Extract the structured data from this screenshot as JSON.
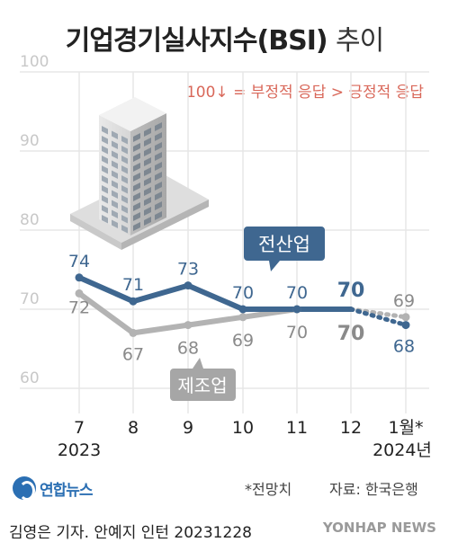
{
  "chart_data": {
    "type": "line",
    "title": "기업경기실사지수(BSI)",
    "title_suffix": "추이",
    "annotation": "100↓ = 부정적 응답 > 긍정적 응답",
    "ylim": [
      55,
      105
    ],
    "yticks": [
      60,
      70,
      80,
      90,
      100
    ],
    "categories": [
      "7",
      "8",
      "9",
      "10",
      "11",
      "12",
      "1월*"
    ],
    "year_labels": [
      {
        "index": 0,
        "text": "2023"
      },
      {
        "index": 6,
        "text": "2024년"
      }
    ],
    "series": [
      {
        "name": "전산업",
        "color": "#3f6790",
        "values": [
          74,
          71,
          73,
          70,
          70,
          70,
          68
        ],
        "forecast_from_index": 5
      },
      {
        "name": "제조업",
        "color": "#b3b3b3",
        "values": [
          72,
          67,
          68,
          69,
          70,
          70,
          69
        ],
        "forecast_from_index": 5
      }
    ],
    "labels_manufacturing": [
      "72",
      "67",
      "68",
      "69",
      "70",
      "70",
      "69"
    ],
    "labels_all": [
      "74",
      "71",
      "73",
      "70",
      "70",
      "70",
      "68"
    ]
  },
  "footer": {
    "logo": "연합뉴스",
    "forecast_note": "*전망치",
    "source": "자료: 한국은행",
    "credit": "김영은 기자. 안예지 인턴  20231228",
    "watermark": "YONHAP NEWS"
  }
}
